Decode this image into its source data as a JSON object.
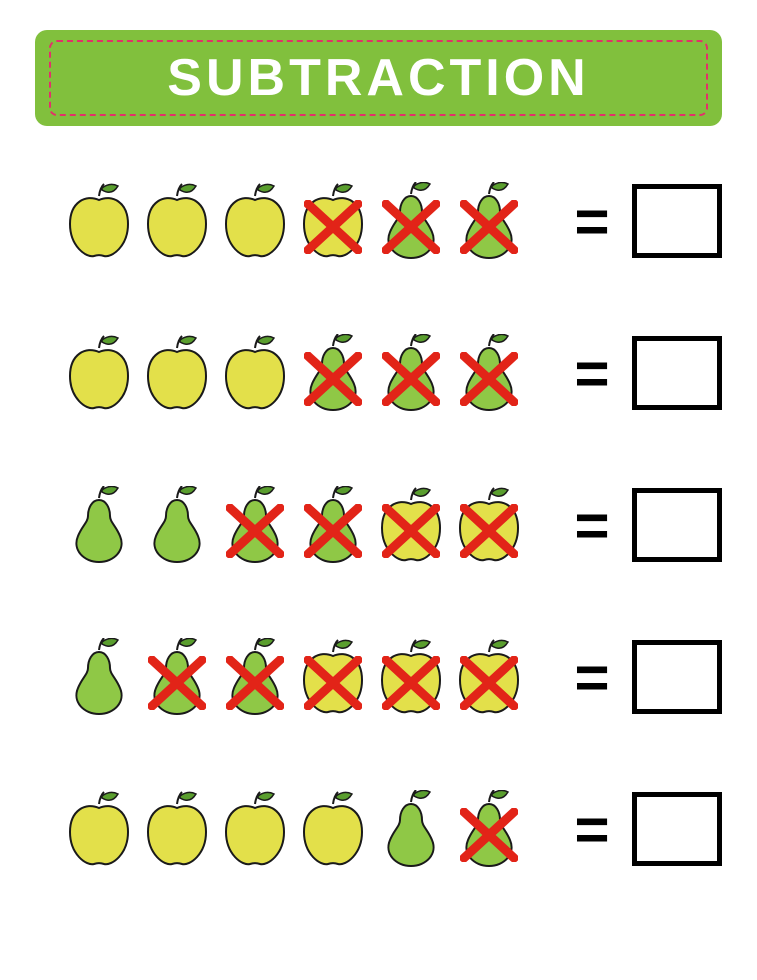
{
  "title": "SUBTRACTION",
  "colors": {
    "banner_bg": "#81c03d",
    "banner_border": "#e3306a",
    "title_text": "#ffffff",
    "apple_fill": "#e3e04a",
    "apple_stroke": "#1a1a1a",
    "pear_fill": "#8fc846",
    "pear_stroke": "#1a1a1a",
    "leaf_fill": "#5a9e2e",
    "cross": "#e22418"
  },
  "equals_sign": "=",
  "rows": [
    {
      "items": [
        {
          "type": "apple",
          "crossed": false
        },
        {
          "type": "apple",
          "crossed": false
        },
        {
          "type": "apple",
          "crossed": false
        },
        {
          "type": "apple",
          "crossed": true
        },
        {
          "type": "pear",
          "crossed": true
        },
        {
          "type": "pear",
          "crossed": true
        }
      ]
    },
    {
      "items": [
        {
          "type": "apple",
          "crossed": false
        },
        {
          "type": "apple",
          "crossed": false
        },
        {
          "type": "apple",
          "crossed": false
        },
        {
          "type": "pear",
          "crossed": true
        },
        {
          "type": "pear",
          "crossed": true
        },
        {
          "type": "pear",
          "crossed": true
        }
      ]
    },
    {
      "items": [
        {
          "type": "pear",
          "crossed": false
        },
        {
          "type": "pear",
          "crossed": false
        },
        {
          "type": "pear",
          "crossed": true
        },
        {
          "type": "pear",
          "crossed": true
        },
        {
          "type": "apple",
          "crossed": true
        },
        {
          "type": "apple",
          "crossed": true
        }
      ]
    },
    {
      "items": [
        {
          "type": "pear",
          "crossed": false
        },
        {
          "type": "pear",
          "crossed": true
        },
        {
          "type": "pear",
          "crossed": true
        },
        {
          "type": "apple",
          "crossed": true
        },
        {
          "type": "apple",
          "crossed": true
        },
        {
          "type": "apple",
          "crossed": true
        }
      ]
    },
    {
      "items": [
        {
          "type": "apple",
          "crossed": false
        },
        {
          "type": "apple",
          "crossed": false
        },
        {
          "type": "apple",
          "crossed": false
        },
        {
          "type": "apple",
          "crossed": false
        },
        {
          "type": "pear",
          "crossed": false
        },
        {
          "type": "pear",
          "crossed": true
        }
      ]
    }
  ]
}
